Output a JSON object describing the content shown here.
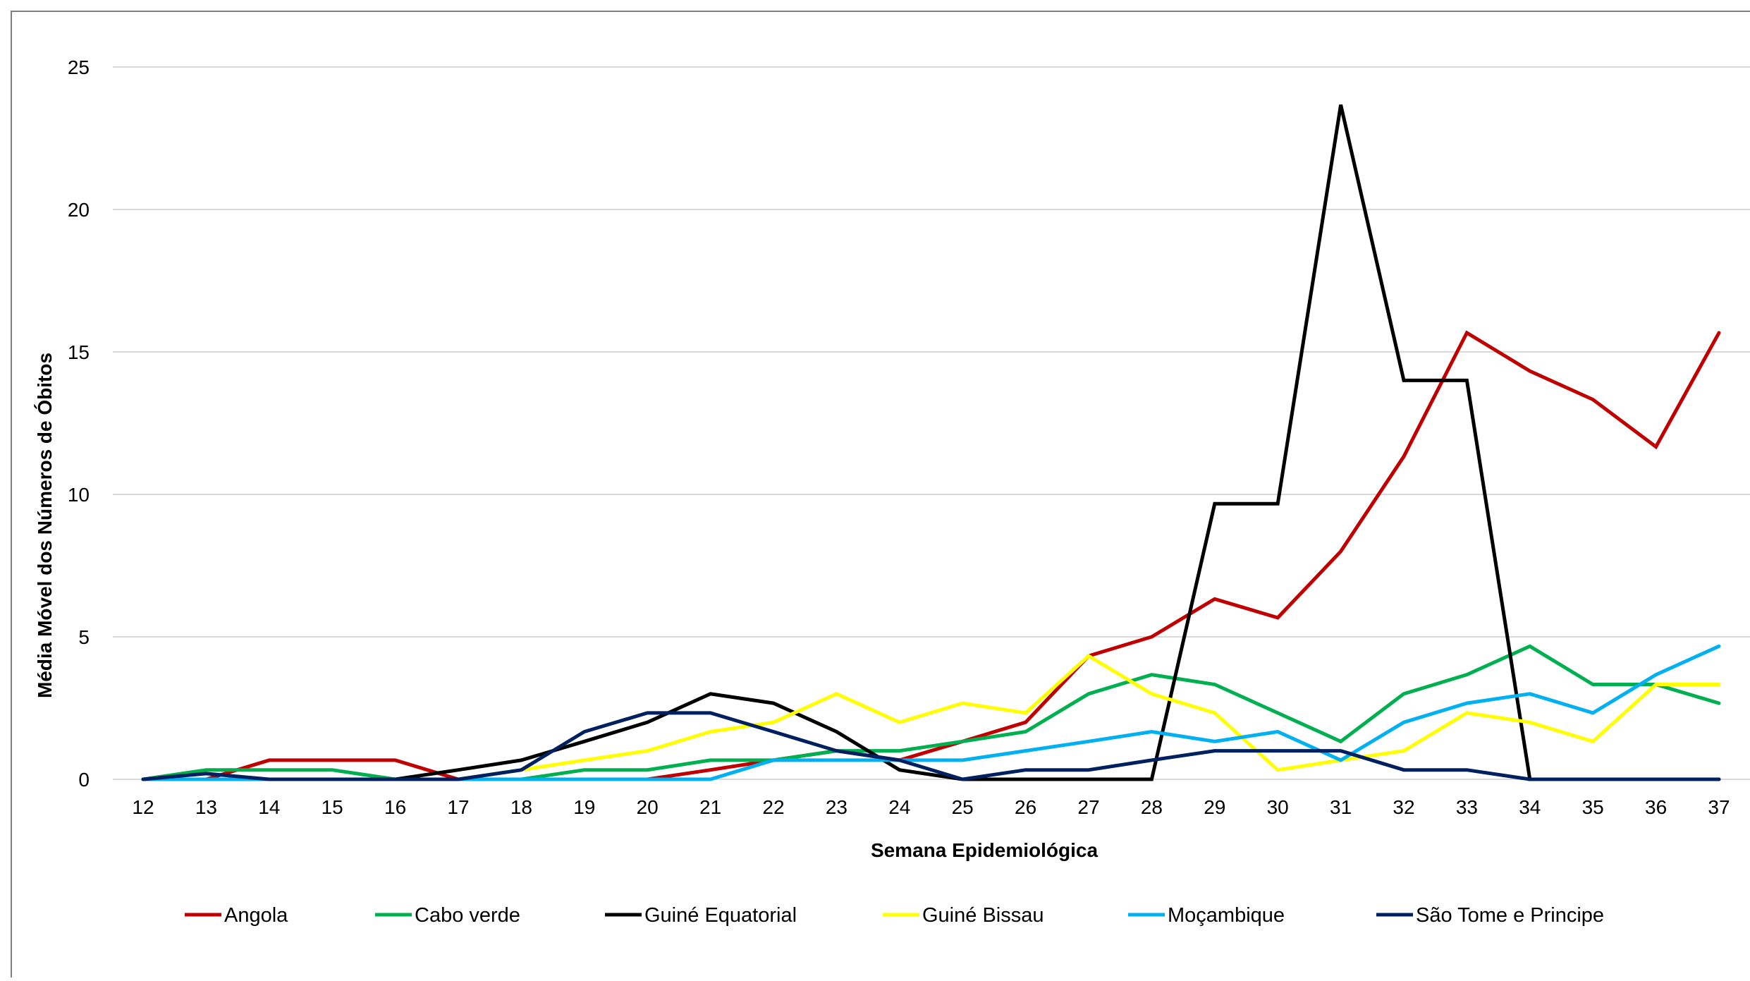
{
  "chart_data": {
    "type": "line",
    "title": "",
    "xlabel": "Semana Epidemiológica",
    "ylabel": "Média Móvel dos Números de Óbitos",
    "ylim": [
      0,
      25
    ],
    "yticks": [
      0,
      5,
      10,
      15,
      20,
      25
    ],
    "grid": true,
    "legend_position": "bottom",
    "x": [
      "12",
      "13",
      "14",
      "15",
      "16",
      "17",
      "18",
      "19",
      "20",
      "21",
      "22",
      "23",
      "24",
      "25",
      "26",
      "27",
      "28",
      "29",
      "30",
      "31",
      "32",
      "33",
      "34",
      "35",
      "36",
      "37"
    ],
    "series": [
      {
        "name": "Angola",
        "color": "#C00000",
        "values": [
          0,
          0,
          0.67,
          0.67,
          0.67,
          0,
          0,
          0,
          0,
          0.33,
          0.67,
          1,
          0.67,
          1.33,
          2,
          4.33,
          5,
          6.33,
          5.67,
          8,
          11.33,
          15.67,
          14.33,
          13.33,
          11.67,
          15.67
        ]
      },
      {
        "name": "Cabo verde",
        "color": "#00B050",
        "values": [
          0,
          0.33,
          0.33,
          0.33,
          0,
          0,
          0,
          0.33,
          0.33,
          0.67,
          0.67,
          1,
          1,
          1.33,
          1.67,
          3,
          3.67,
          3.33,
          2.33,
          1.33,
          3,
          3.67,
          4.67,
          3.33,
          3.33,
          2.67
        ]
      },
      {
        "name": "Guiné Equatorial",
        "color": "#000000",
        "values": [
          0,
          0,
          0,
          0,
          0,
          0.33,
          0.67,
          1.33,
          2,
          3,
          2.67,
          1.67,
          0.33,
          0,
          0,
          0,
          0,
          9.67,
          9.67,
          23.67,
          14,
          14,
          0,
          0,
          0,
          0
        ]
      },
      {
        "name": "Guiné Bissau",
        "color": "#FFFF00",
        "values": [
          0,
          0,
          0,
          0,
          0,
          0,
          0.33,
          0.67,
          1,
          1.67,
          2,
          3,
          2,
          2.67,
          2.33,
          4.33,
          3,
          2.33,
          0.33,
          0.67,
          1,
          2.33,
          2,
          1.33,
          3.33,
          3.33
        ]
      },
      {
        "name": "Moçambique",
        "color": "#00B0F0",
        "values": [
          0,
          0,
          0,
          0,
          0,
          0,
          0,
          0,
          0,
          0,
          0.67,
          0.67,
          0.67,
          0.67,
          1,
          1.33,
          1.67,
          1.33,
          1.67,
          0.67,
          2,
          2.67,
          3,
          2.33,
          3.67,
          4.67
        ]
      },
      {
        "name": "São Tome e Principe",
        "color": "#002060",
        "values": [
          0,
          0.2,
          0,
          0,
          0,
          0,
          0.33,
          1.67,
          2.33,
          2.33,
          1.67,
          1,
          0.67,
          0,
          0.33,
          0.33,
          0.67,
          1,
          1,
          1,
          0.33,
          0.33,
          0,
          0,
          0,
          0
        ]
      }
    ]
  }
}
